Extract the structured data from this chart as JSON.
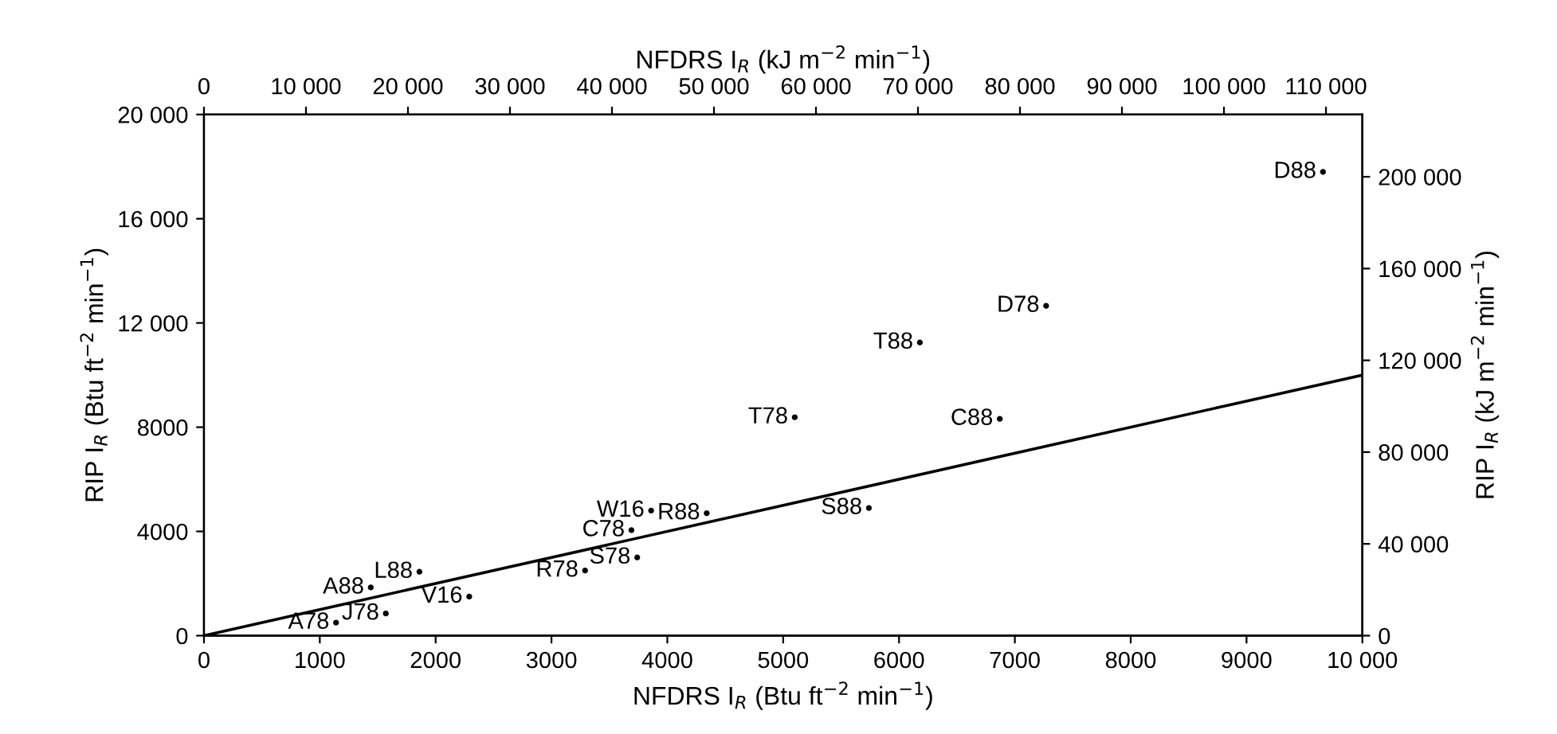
{
  "chart_data": {
    "type": "scatter",
    "xlabel": "NFDRS I$_{R}$ (Btu ft$^{−2}$ min$^{−1}$)",
    "ylabel": "RIP I$_{R}$ (Btu ft$^{−2}$ min$^{−1}$)",
    "x2label": "NFDRS I$_{R}$ (kJ m$^{−2}$ min$^{−1}$)",
    "y2label": "RIP I$_{R}$ (kJ m$^{−2}$ min$^{−1}$)",
    "xlim": [
      0,
      10000
    ],
    "xticks": [
      0,
      1000,
      2000,
      3000,
      4000,
      5000,
      6000,
      7000,
      8000,
      9000,
      {
        "value": 10000,
        "label": "10 000"
      }
    ],
    "ylim": [
      0,
      20000
    ],
    "yticks": [
      0,
      4000,
      8000,
      {
        "value": 12000,
        "label": "12 000"
      },
      {
        "value": 16000,
        "label": "16 000"
      },
      {
        "value": 20000,
        "label": "20 000"
      }
    ],
    "x2lim": [
      0,
      113570
    ],
    "x2ticks": [
      0,
      {
        "value": 10000,
        "label": "10 000"
      },
      {
        "value": 20000,
        "label": "20 000"
      },
      {
        "value": 30000,
        "label": "30 000"
      },
      {
        "value": 40000,
        "label": "40 000"
      },
      {
        "value": 50000,
        "label": "50 000"
      },
      {
        "value": 60000,
        "label": "60 000"
      },
      {
        "value": 70000,
        "label": "70 000"
      },
      {
        "value": 80000,
        "label": "80 000"
      },
      {
        "value": 90000,
        "label": "90 000"
      },
      {
        "value": 100000,
        "label": "100 000"
      },
      {
        "value": 110000,
        "label": "110 000"
      }
    ],
    "y2lim": [
      0,
      227140
    ],
    "y2ticks": [
      0,
      {
        "value": 40000,
        "label": "40 000"
      },
      {
        "value": 80000,
        "label": "80 000"
      },
      {
        "value": 120000,
        "label": "120 000"
      },
      {
        "value": 160000,
        "label": "160 000"
      },
      {
        "value": 200000,
        "label": "200 000"
      }
    ],
    "series": [
      {
        "color": "#000000",
        "x": [
          1140,
          1570,
          1440,
          1860,
          2290,
          3290,
          3740,
          3690,
          3860,
          4340,
          5740,
          5100,
          6180,
          6870,
          7270,
          9660
        ],
        "values": [
          500,
          850,
          1850,
          2450,
          1500,
          2500,
          3000,
          4050,
          4800,
          4700,
          4900,
          8380,
          11250,
          8320,
          12660,
          17800
        ],
        "value_labels": [
          "A78",
          "J78",
          "A88",
          "L88",
          "V16",
          "R78",
          "S78",
          "C78",
          "W16",
          "R88",
          "S88",
          "T78",
          "T88",
          "C88",
          "D78",
          "D88"
        ],
        "marker": "circle"
      },
      {
        "type": "line",
        "color": "#000000",
        "x": [
          0,
          10000
        ],
        "values": [
          0,
          10000
        ],
        "line_style": "solid"
      }
    ],
    "grid": false,
    "legend": false
  }
}
